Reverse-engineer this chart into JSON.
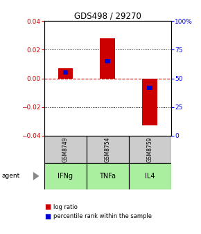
{
  "title": "GDS498 / 29270",
  "samples": [
    "GSM8749",
    "GSM8754",
    "GSM8759"
  ],
  "agents": [
    "IFNg",
    "TNFa",
    "IL4"
  ],
  "log_ratios": [
    0.007,
    0.028,
    -0.033
  ],
  "percentile_ranks": [
    55,
    65,
    42
  ],
  "ylim_left": [
    -0.04,
    0.04
  ],
  "ylim_right": [
    0,
    100
  ],
  "yticks_left": [
    -0.04,
    -0.02,
    0.0,
    0.02,
    0.04
  ],
  "yticks_right": [
    0,
    25,
    50,
    75,
    100
  ],
  "ytick_labels_right": [
    "0",
    "25",
    "50",
    "75",
    "100%"
  ],
  "bar_color_red": "#cc0000",
  "bar_color_blue": "#0000cc",
  "sample_box_color": "#cccccc",
  "agent_box_color": "#aaeea0",
  "zero_line_color": "#cc0000",
  "bar_width": 0.35,
  "percentile_bar_width": 0.12
}
